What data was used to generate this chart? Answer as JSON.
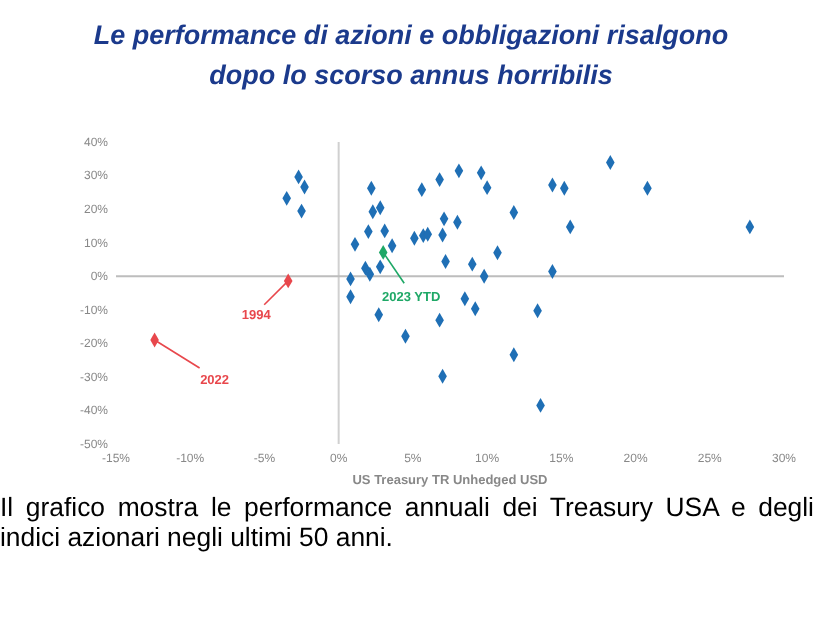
{
  "chart_data": {
    "type": "scatter",
    "title": "Le performance di azioni e obbligazioni risalgono dopo lo scorso annus horribilis",
    "xlabel": "US Treasury TR Unhedged USD",
    "annotations": [
      {
        "text": "2022",
        "x": -12.4,
        "y": -19
      },
      {
        "text": "1994",
        "x": -3.4,
        "y": -1.4
      },
      {
        "text": "2023 YTD",
        "x": 3.0,
        "y": 7.1
      },
      "Il grafico mostra le performance annuali dei Treasury USA e degli indici azionari negli ultimi 50 anni."
    ],
    "xlim": [
      -15,
      30
    ],
    "ylim": [
      -50,
      40
    ],
    "xticks": [
      {
        "value": -15,
        "label": "-15%"
      },
      {
        "value": -10,
        "label": "-10%"
      },
      {
        "value": -5,
        "label": "-5%"
      },
      {
        "value": 0,
        "label": "0%"
      },
      {
        "value": 5,
        "label": "5%"
      },
      {
        "value": 10,
        "label": "10%"
      },
      {
        "value": 15,
        "label": "15%"
      },
      {
        "value": 20,
        "label": "20%"
      },
      {
        "value": 25,
        "label": "25%"
      },
      {
        "value": 30,
        "label": "30%"
      }
    ],
    "yticks": [
      {
        "value": 40,
        "label": "40%"
      },
      {
        "value": 30,
        "label": "30%"
      },
      {
        "value": 20,
        "label": "20%"
      },
      {
        "value": 10,
        "label": "10%"
      },
      {
        "value": 0,
        "label": "0%"
      },
      {
        "value": -10,
        "label": "-10%"
      },
      {
        "value": -20,
        "label": "-20%"
      },
      {
        "value": -30,
        "label": "-30%"
      },
      {
        "value": -40,
        "label": "-40%"
      },
      {
        "value": -50,
        "label": "-50%"
      }
    ],
    "grid": false,
    "marker": "diamond",
    "ref_lines": [
      {
        "axis": "x",
        "value": 0,
        "color": "#d0d0d0"
      },
      {
        "axis": "y",
        "value": 0,
        "color": "#bdbdbd"
      }
    ],
    "series": [
      {
        "color": "#1f6fb5",
        "x": [
          -2.7,
          -2.3,
          -3.5,
          -2.5,
          2.2,
          2.3,
          2.8,
          2.0,
          3.1,
          1.1,
          3.6,
          1.8,
          2.1,
          2.8,
          0.8,
          0.8,
          2.7,
          4.5,
          5.6,
          5.1,
          5.7,
          6.0,
          6.8,
          7.0,
          8.1,
          9.6,
          10.0,
          14.4,
          15.2,
          18.3,
          20.8,
          27.7,
          11.8,
          15.6,
          7.1,
          8.0,
          7.0,
          10.7,
          7.2,
          9.0,
          9.8,
          14.4,
          8.5,
          9.2,
          13.4,
          6.8,
          11.8,
          13.6
        ],
        "values": [
          29.6,
          26.6,
          23.2,
          19.4,
          26.2,
          19.2,
          20.4,
          13.3,
          13.5,
          9.5,
          9.1,
          2.4,
          0.6,
          2.8,
          -0.8,
          -6.1,
          -11.5,
          -17.9,
          25.8,
          11.3,
          12.1,
          12.5,
          28.8,
          -29.8,
          31.4,
          30.8,
          26.4,
          27.2,
          26.2,
          33.9,
          26.2,
          14.7,
          19.0,
          14.7,
          17.1,
          16.1,
          12.3,
          7.0,
          4.4,
          3.6,
          0.0,
          1.4,
          -6.7,
          -9.7,
          -10.3,
          -13.1,
          -23.4,
          -38.5
        ]
      },
      {
        "color": "#e8474c",
        "x": [
          -12.4,
          -3.4
        ],
        "values": [
          -19,
          -1.4
        ]
      },
      {
        "color": "#1ea866",
        "x": [
          3.0
        ],
        "values": [
          7.1
        ]
      }
    ]
  }
}
